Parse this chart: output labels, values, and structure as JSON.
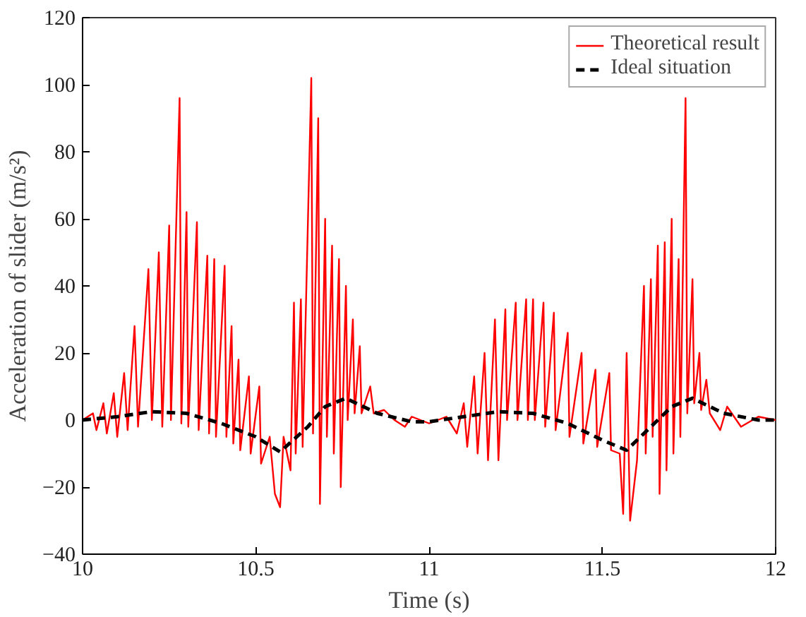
{
  "chart_data": {
    "type": "line",
    "xlabel": "Time (s)",
    "ylabel": "Acceleration of slider (m/s²)",
    "xlim": [
      10,
      12
    ],
    "ylim": [
      -40,
      120
    ],
    "xticks": [
      10,
      {
        "value": 10.5,
        "label": "10.5"
      },
      11,
      {
        "value": 11.5,
        "label": "11.5"
      },
      12
    ],
    "yticks": [
      -40,
      -20,
      0,
      20,
      40,
      60,
      80,
      100,
      120
    ],
    "grid": false,
    "legend": "top right",
    "series": [
      {
        "name": "Theoretical result",
        "color": "#ff0000",
        "line_style": "solid",
        "x": [
          10.0,
          10.03,
          10.04,
          10.06,
          10.07,
          10.09,
          10.1,
          10.12,
          10.13,
          10.15,
          10.16,
          10.19,
          10.2,
          10.22,
          10.23,
          10.25,
          10.255,
          10.28,
          10.285,
          10.3,
          10.305,
          10.33,
          10.335,
          10.36,
          10.365,
          10.38,
          10.385,
          10.41,
          10.415,
          10.43,
          10.435,
          10.45,
          10.455,
          10.48,
          10.485,
          10.51,
          10.515,
          10.54,
          10.555,
          10.57,
          10.58,
          10.6,
          10.61,
          10.615,
          10.63,
          10.635,
          10.66,
          10.665,
          10.68,
          10.685,
          10.7,
          10.705,
          10.72,
          10.725,
          10.74,
          10.745,
          10.76,
          10.765,
          10.78,
          10.785,
          10.8,
          10.805,
          10.83,
          10.84,
          10.87,
          10.9,
          10.93,
          10.95,
          11.0,
          11.05,
          11.08,
          11.1,
          11.11,
          11.13,
          11.14,
          11.16,
          11.17,
          11.19,
          11.2,
          11.22,
          11.225,
          11.25,
          11.255,
          11.28,
          11.285,
          11.3,
          11.305,
          11.33,
          11.335,
          11.36,
          11.365,
          11.4,
          11.405,
          11.44,
          11.445,
          11.48,
          11.485,
          11.52,
          11.525,
          11.55,
          11.56,
          11.57,
          11.58,
          11.6,
          11.62,
          11.625,
          11.64,
          11.645,
          11.66,
          11.665,
          11.68,
          11.685,
          11.7,
          11.705,
          11.72,
          11.725,
          11.74,
          11.745,
          11.76,
          11.765,
          11.78,
          11.785,
          11.8,
          11.81,
          11.84,
          11.86,
          11.9,
          11.95,
          12.0
        ],
        "values": [
          0,
          2,
          -3,
          5,
          -4,
          8,
          -5,
          14,
          -3,
          28,
          -2,
          45,
          0,
          50,
          -2,
          58,
          0,
          96,
          -1,
          62,
          -2,
          59,
          -3,
          49,
          -4,
          48,
          -5,
          46,
          -5,
          28,
          -7,
          18,
          -9,
          13,
          -10,
          10,
          -13,
          -5,
          -22,
          -26,
          -5,
          -15,
          35,
          -10,
          36,
          -8,
          102,
          -4,
          90,
          -25,
          60,
          -5,
          52,
          -10,
          48,
          -20,
          40,
          0,
          30,
          2,
          22,
          2,
          10,
          2,
          3,
          0,
          -2,
          1,
          -1,
          1,
          -4,
          5,
          -8,
          13,
          -10,
          20,
          -12,
          30,
          -12,
          33,
          0,
          35,
          0,
          36,
          0,
          36,
          0,
          35,
          -2,
          32,
          -3,
          26,
          -5,
          20,
          -7,
          15,
          -8,
          14,
          -9,
          -10,
          -28,
          20,
          -30,
          -12,
          40,
          -10,
          42,
          -5,
          52,
          -22,
          53,
          -15,
          60,
          -10,
          48,
          -5,
          96,
          2,
          42,
          5,
          20,
          3,
          12,
          2,
          -3,
          4,
          -2,
          1,
          0
        ]
      },
      {
        "name": "Ideal situation",
        "color": "#000000",
        "line_style": "dashed",
        "x": [
          10.0,
          10.1,
          10.2,
          10.3,
          10.4,
          10.5,
          10.57,
          10.65,
          10.7,
          10.76,
          10.85,
          10.95,
          11.0,
          11.1,
          11.2,
          11.3,
          11.4,
          11.5,
          11.57,
          11.65,
          11.7,
          11.76,
          11.85,
          11.95,
          12.0
        ],
        "values": [
          0,
          1,
          2.5,
          2,
          -1,
          -5,
          -9.5,
          -2,
          4,
          6.5,
          2,
          -0.5,
          -0.5,
          1,
          2.5,
          2,
          -1,
          -6,
          -9,
          -1,
          4,
          6.5,
          2,
          0,
          0
        ]
      }
    ]
  }
}
